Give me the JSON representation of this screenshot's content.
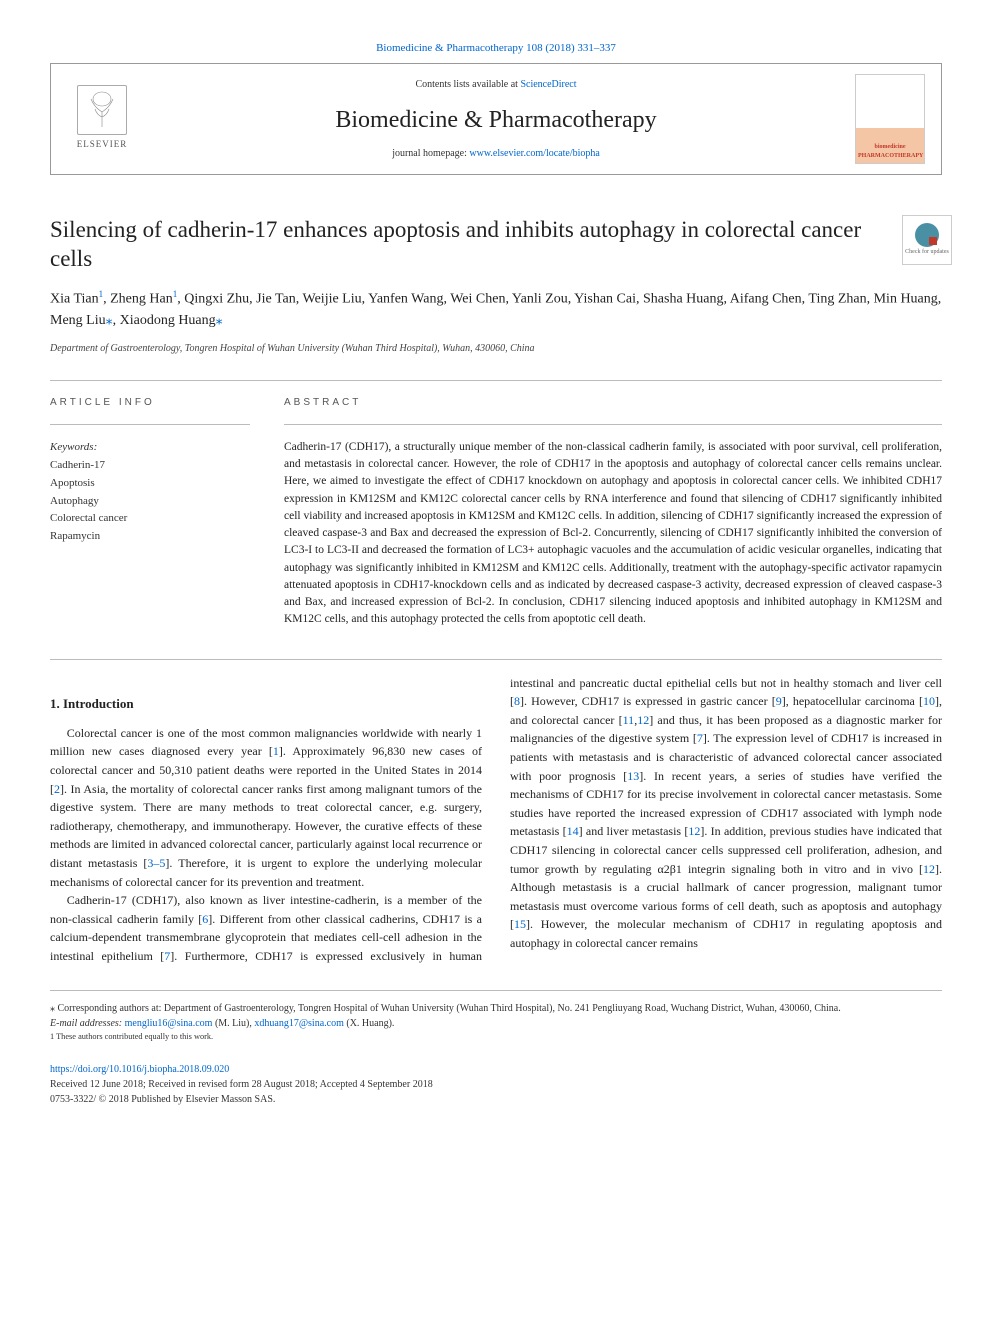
{
  "header": {
    "top_link": "Biomedicine & Pharmacotherapy 108 (2018) 331–337",
    "contents_prefix": "Contents lists available at ",
    "contents_link": "ScienceDirect",
    "journal_name": "Biomedicine & Pharmacotherapy",
    "homepage_prefix": "journal homepage: ",
    "homepage_link": "www.elsevier.com/locate/biopha",
    "elsevier_label": "ELSEVIER",
    "cover_label": "biomedicine PHARMACOTHERAPY"
  },
  "check_updates_label": "Check for updates",
  "article": {
    "title": "Silencing of cadherin-17 enhances apoptosis and inhibits autophagy in colorectal cancer cells",
    "authors_html": "Xia Tian<sup>1</sup>, Zheng Han<sup>1</sup>, Qingxi Zhu, Jie Tan, Weijie Liu, Yanfen Wang, Wei Chen, Yanli Zou, Yishan Cai, Shasha Huang, Aifang Chen, Ting Zhan, Min Huang, Meng Liu<span class='ast'>⁎</span>, Xiaodong Huang<span class='ast'>⁎</span>",
    "affiliation": "Department of Gastroenterology, Tongren Hospital of Wuhan University (Wuhan Third Hospital), Wuhan, 430060, China"
  },
  "info_heading": "ARTICLE INFO",
  "keywords_label": "Keywords:",
  "keywords": [
    "Cadherin-17",
    "Apoptosis",
    "Autophagy",
    "Colorectal cancer",
    "Rapamycin"
  ],
  "abstract_heading": "ABSTRACT",
  "abstract": "Cadherin-17 (CDH17), a structurally unique member of the non-classical cadherin family, is associated with poor survival, cell proliferation, and metastasis in colorectal cancer. However, the role of CDH17 in the apoptosis and autophagy of colorectal cancer cells remains unclear. Here, we aimed to investigate the effect of CDH17 knockdown on autophagy and apoptosis in colorectal cancer cells. We inhibited CDH17 expression in KM12SM and KM12C colorectal cancer cells by RNA interference and found that silencing of CDH17 significantly inhibited cell viability and increased apoptosis in KM12SM and KM12C cells. In addition, silencing of CDH17 significantly increased the expression of cleaved caspase-3 and Bax and decreased the expression of Bcl-2. Concurrently, silencing of CDH17 significantly inhibited the conversion of LC3-I to LC3-II and decreased the formation of LC3+ autophagic vacuoles and the accumulation of acidic vesicular organelles, indicating that autophagy was significantly inhibited in KM12SM and KM12C cells. Additionally, treatment with the autophagy-specific activator rapamycin attenuated apoptosis in CDH17-knockdown cells and as indicated by decreased caspase-3 activity, decreased expression of cleaved caspase-3 and Bax, and increased expression of Bcl-2. In conclusion, CDH17 silencing induced apoptosis and inhibited autophagy in KM12SM and KM12C cells, and this autophagy protected the cells from apoptotic cell death.",
  "sections": {
    "intro_heading": "1. Introduction",
    "intro_p1": "Colorectal cancer is one of the most common malignancies worldwide with nearly 1 million new cases diagnosed every year [<span class='ref'>1</span>]. Approximately 96,830 new cases of colorectal cancer and 50,310 patient deaths were reported in the United States in 2014 [<span class='ref'>2</span>]. In Asia, the mortality of colorectal cancer ranks first among malignant tumors of the digestive system. There are many methods to treat colorectal cancer, e.g. surgery, radiotherapy, chemotherapy, and immunotherapy. However, the curative effects of these methods are limited in advanced colorectal cancer, particularly against local recurrence or distant metastasis [<span class='ref'>3–5</span>]. Therefore, it is urgent to explore the underlying molecular mechanisms of colorectal cancer for its prevention and treatment.",
    "intro_p2": "Cadherin-17 (CDH17), also known as liver intestine-cadherin, is a member of the non-classical cadherin family [<span class='ref'>6</span>]. Different from other classical cadherins, CDH17 is a calcium-dependent transmembrane glycoprotein that mediates cell-cell adhesion in the intestinal epithelium [<span class='ref'>7</span>]. Furthermore, CDH17 is expressed exclusively in human intestinal and pancreatic ductal epithelial cells but not in healthy stomach and liver cell [<span class='ref'>8</span>]. However, CDH17 is expressed in gastric cancer [<span class='ref'>9</span>], hepatocellular carcinoma [<span class='ref'>10</span>], and colorectal cancer [<span class='ref'>11</span>,<span class='ref'>12</span>] and thus, it has been proposed as a diagnostic marker for malignancies of the digestive system [<span class='ref'>7</span>]. The expression level of CDH17 is increased in patients with metastasis and is characteristic of advanced colorectal cancer associated with poor prognosis [<span class='ref'>13</span>]. In recent years, a series of studies have verified the mechanisms of CDH17 for its precise involvement in colorectal cancer metastasis. Some studies have reported the increased expression of CDH17 associated with lymph node metastasis [<span class='ref'>14</span>] and liver metastasis [<span class='ref'>12</span>]. In addition, previous studies have indicated that CDH17 silencing in colorectal cancer cells suppressed cell proliferation, adhesion, and tumor growth by regulating α2β1 integrin signaling both in vitro and in vivo [<span class='ref'>12</span>]. Although metastasis is a crucial hallmark of cancer progression, malignant tumor metastasis must overcome various forms of cell death, such as apoptosis and autophagy [<span class='ref'>15</span>]. However, the molecular mechanism of CDH17 in regulating apoptosis and autophagy in colorectal cancer remains"
  },
  "footer": {
    "corresponding": "⁎ Corresponding authors at: Department of Gastroenterology, Tongren Hospital of Wuhan University (Wuhan Third Hospital), No. 241 Pengliuyang Road, Wuchang District, Wuhan, 430060, China.",
    "email_prefix": "E-mail addresses: ",
    "email1": "mengliu16@sina.com",
    "email1_suffix": " (M. Liu), ",
    "email2": "xdhuang17@sina.com",
    "email2_suffix": " (X. Huang).",
    "equal_note": "1 These authors contributed equally to this work.",
    "doi": "https://doi.org/10.1016/j.biopha.2018.09.020",
    "received": "Received 12 June 2018; Received in revised form 28 August 2018; Accepted 4 September 2018",
    "copyright": "0753-3322/ © 2018 Published by Elsevier Masson SAS."
  },
  "colors": {
    "link": "#0066cc",
    "text": "#222222",
    "muted": "#555555",
    "border": "#bbbbbb",
    "cover_accent": "#f5c6a5",
    "cover_text": "#c0392b",
    "check_icon": "#4a90a4"
  }
}
